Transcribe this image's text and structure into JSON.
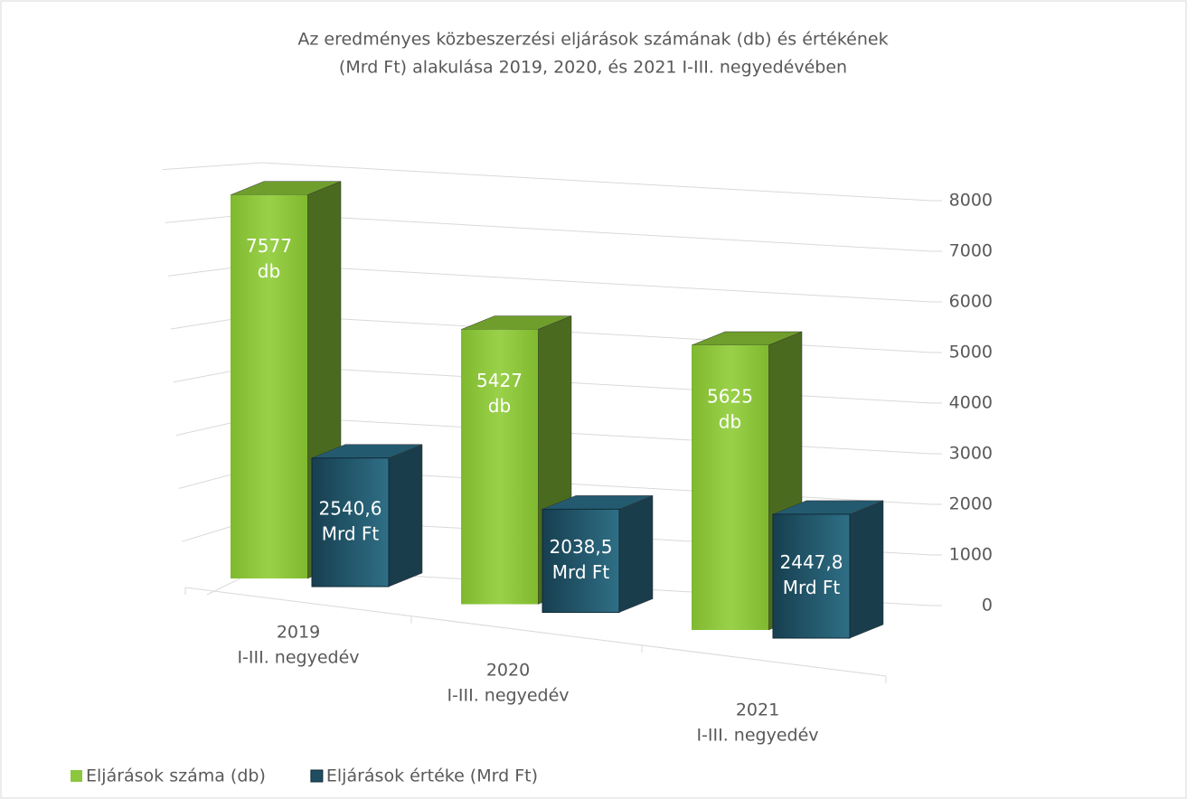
{
  "chart_data": {
    "type": "bar3d",
    "title": [
      "Az eredményes közbeszerzési eljárások számának (db) és értékének",
      "(Mrd Ft) alakulása 2019, 2020, és 2021 I-III. negyedévében"
    ],
    "categories": [
      [
        "2019",
        "I-III. negyedév"
      ],
      [
        "2020",
        "I-III. negyedév"
      ],
      [
        "2021",
        "I-III. negyedév"
      ]
    ],
    "series": [
      {
        "name": "Eljárások száma (db)",
        "color": "#8dc63f",
        "values": [
          7577,
          5427,
          5625
        ],
        "value_labels": [
          [
            "7577",
            "db"
          ],
          [
            "5427",
            "db"
          ],
          [
            "5625",
            "db"
          ]
        ]
      },
      {
        "name": "Eljárások értéke (Mrd Ft)",
        "color": "#1f5468",
        "values": [
          2540.6,
          2038.5,
          2447.8
        ],
        "value_labels": [
          [
            "2540,6",
            "Mrd Ft"
          ],
          [
            "2038,5",
            "Mrd Ft"
          ],
          [
            "2447,8",
            "Mrd Ft"
          ]
        ]
      }
    ],
    "ylim": [
      0,
      8000
    ],
    "yticks": [
      0,
      1000,
      2000,
      3000,
      4000,
      5000,
      6000,
      7000,
      8000
    ],
    "grid": true,
    "legend": "bottom-left"
  }
}
